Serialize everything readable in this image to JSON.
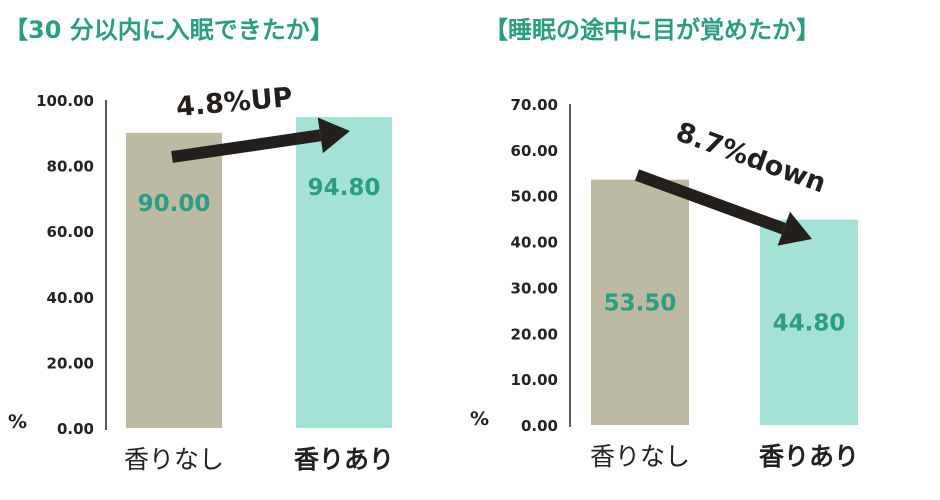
{
  "colors": {
    "title": "#2a9d82",
    "bar_without": "#bdbaa3",
    "bar_with": "#a5e2d6",
    "value_label": "#2a9d82",
    "axis": "#222222",
    "arrow": "#231f1c"
  },
  "chart_data": [
    {
      "type": "bar",
      "title": "【30 分以内に入眠できたか】",
      "categories": [
        "香りなし",
        "香りあり"
      ],
      "values": [
        90.0,
        94.8
      ],
      "value_labels": [
        "90.00",
        "94.80"
      ],
      "ylabel": "%",
      "ylim": [
        0,
        100
      ],
      "yticks": [
        "0.00",
        "20.00",
        "40.00",
        "60.00",
        "80.00",
        "100.00"
      ],
      "grid": false,
      "annotation": "4.8%UP",
      "annotation_direction": "up"
    },
    {
      "type": "bar",
      "title": "【睡眠の途中に目が覚めたか】",
      "categories": [
        "香りなし",
        "香りあり"
      ],
      "values": [
        53.5,
        44.8
      ],
      "value_labels": [
        "53.50",
        "44.80"
      ],
      "ylabel": "%",
      "ylim": [
        0,
        70
      ],
      "yticks": [
        "0.00",
        "10.00",
        "20.00",
        "30.00",
        "40.00",
        "50.00",
        "60.00",
        "70.00"
      ],
      "grid": false,
      "annotation": "8.7%down",
      "annotation_direction": "down"
    }
  ]
}
